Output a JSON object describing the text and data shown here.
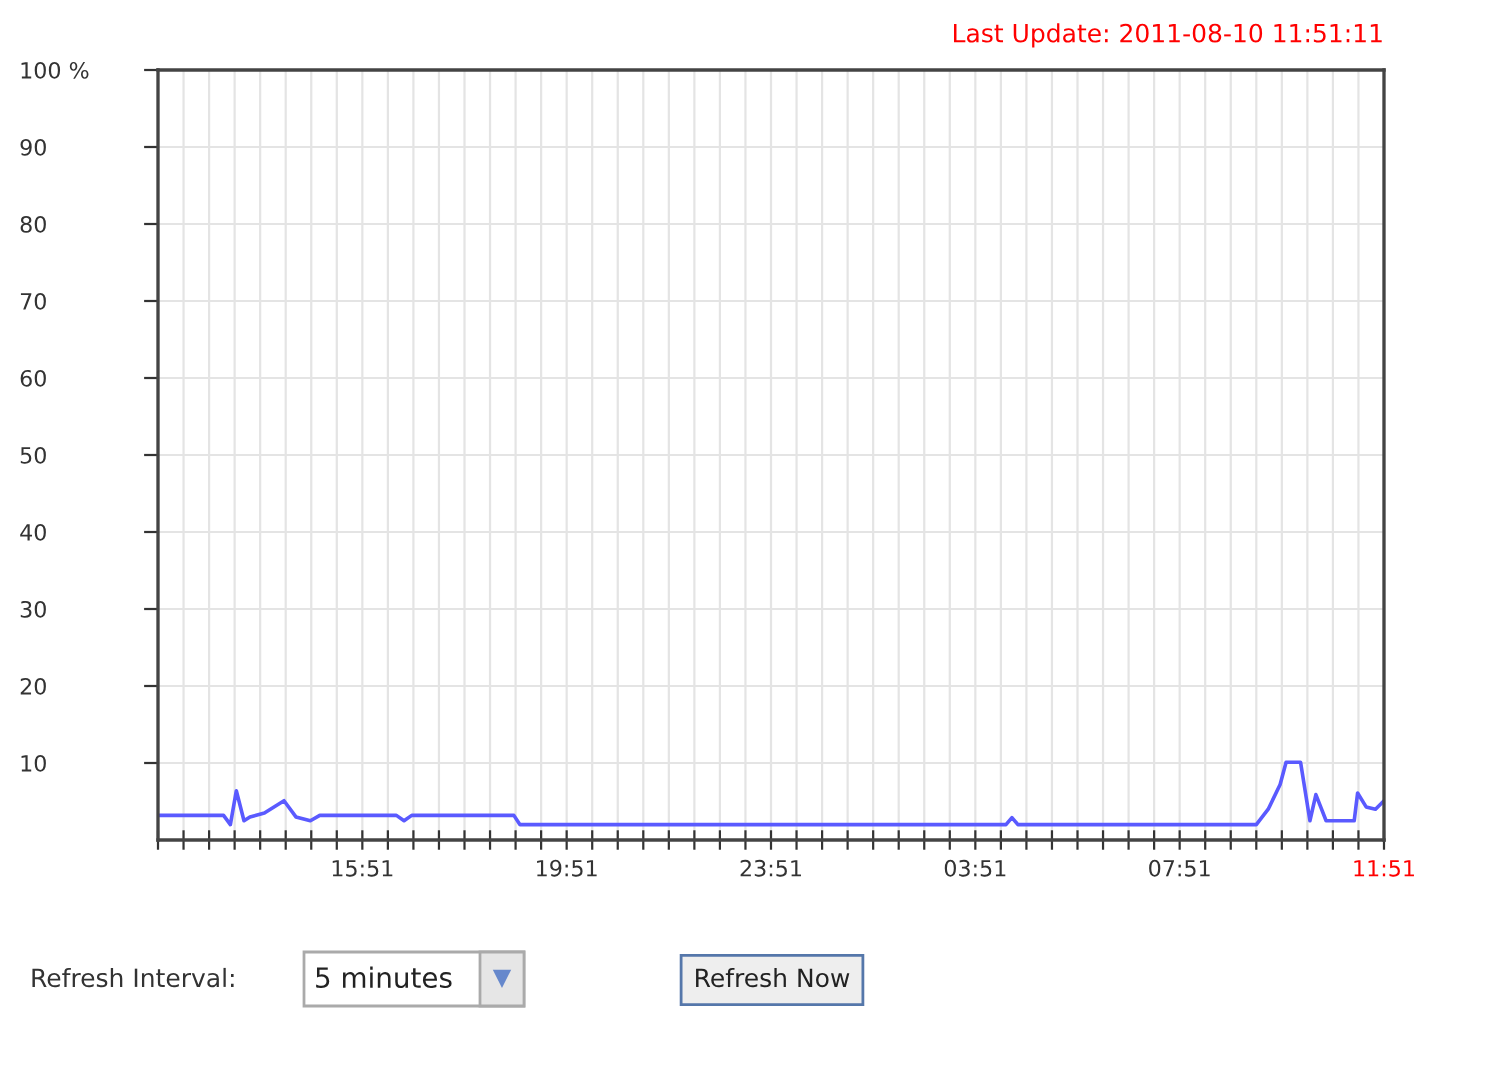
{
  "chart_data": {
    "type": "line",
    "title": "Last Update: 2011-08-10 11:51:11",
    "x": [
      "2011-08-09T11:51",
      "2011-08-09T13:08",
      "2011-08-09T13:16",
      "2011-08-09T13:23",
      "2011-08-09T13:32",
      "2011-08-09T13:39",
      "2011-08-09T13:56",
      "2011-08-09T14:19",
      "2011-08-09T14:33",
      "2011-08-09T14:50",
      "2011-08-09T15:01",
      "2011-08-09T16:31",
      "2011-08-09T16:40",
      "2011-08-09T16:49",
      "2011-08-09T18:49",
      "2011-08-09T18:56",
      "2011-08-10T04:27",
      "2011-08-10T04:34",
      "2011-08-10T04:41",
      "2011-08-10T09:21",
      "2011-08-10T09:35",
      "2011-08-10T09:49",
      "2011-08-10T09:56",
      "2011-08-10T10:13",
      "2011-08-10T10:24",
      "2011-08-10T10:31",
      "2011-08-10T10:43",
      "2011-08-10T11:16",
      "2011-08-10T11:20",
      "2011-08-10T11:30",
      "2011-08-10T11:41",
      "2011-08-10T11:51"
    ],
    "series": [
      {
        "color": "#5a5aff",
        "values": [
          3.2,
          3.2,
          2.0,
          6.4,
          2.5,
          3.0,
          3.5,
          5.1,
          3.0,
          2.5,
          3.2,
          3.2,
          2.5,
          3.2,
          3.2,
          2.0,
          2.0,
          2.9,
          2.0,
          2.0,
          4.0,
          7.2,
          10.1,
          10.1,
          2.5,
          5.9,
          2.5,
          2.5,
          6.1,
          4.3,
          4.0,
          5.1
        ]
      }
    ],
    "xlim": [
      "2011-08-09T11:51",
      "2011-08-10T11:51"
    ],
    "xticks": [
      {
        "value": "2011-08-09T11:51",
        "label": null
      },
      {
        "value": "2011-08-09T12:21",
        "label": null
      },
      {
        "value": "2011-08-09T12:51",
        "label": null
      },
      {
        "value": "2011-08-09T13:21",
        "label": null
      },
      {
        "value": "2011-08-09T13:51",
        "label": null
      },
      {
        "value": "2011-08-09T14:21",
        "label": null
      },
      {
        "value": "2011-08-09T14:51",
        "label": null
      },
      {
        "value": "2011-08-09T15:21",
        "label": null
      },
      {
        "value": "2011-08-09T15:51",
        "label": "15:51"
      },
      {
        "value": "2011-08-09T16:21",
        "label": null
      },
      {
        "value": "2011-08-09T16:51",
        "label": null
      },
      {
        "value": "2011-08-09T17:21",
        "label": null
      },
      {
        "value": "2011-08-09T17:51",
        "label": null
      },
      {
        "value": "2011-08-09T18:21",
        "label": null
      },
      {
        "value": "2011-08-09T18:51",
        "label": null
      },
      {
        "value": "2011-08-09T19:21",
        "label": null
      },
      {
        "value": "2011-08-09T19:51",
        "label": "19:51"
      },
      {
        "value": "2011-08-09T20:21",
        "label": null
      },
      {
        "value": "2011-08-09T20:51",
        "label": null
      },
      {
        "value": "2011-08-09T21:21",
        "label": null
      },
      {
        "value": "2011-08-09T21:51",
        "label": null
      },
      {
        "value": "2011-08-09T22:21",
        "label": null
      },
      {
        "value": "2011-08-09T22:51",
        "label": null
      },
      {
        "value": "2011-08-09T23:21",
        "label": null
      },
      {
        "value": "2011-08-09T23:51",
        "label": "23:51"
      },
      {
        "value": "2011-08-10T00:21",
        "label": null
      },
      {
        "value": "2011-08-10T00:51",
        "label": null
      },
      {
        "value": "2011-08-10T01:21",
        "label": null
      },
      {
        "value": "2011-08-10T01:51",
        "label": null
      },
      {
        "value": "2011-08-10T02:21",
        "label": null
      },
      {
        "value": "2011-08-10T02:51",
        "label": null
      },
      {
        "value": "2011-08-10T03:21",
        "label": null
      },
      {
        "value": "2011-08-10T03:51",
        "label": "03:51"
      },
      {
        "value": "2011-08-10T04:21",
        "label": null
      },
      {
        "value": "2011-08-10T04:51",
        "label": null
      },
      {
        "value": "2011-08-10T05:21",
        "label": null
      },
      {
        "value": "2011-08-10T05:51",
        "label": null
      },
      {
        "value": "2011-08-10T06:21",
        "label": null
      },
      {
        "value": "2011-08-10T06:51",
        "label": null
      },
      {
        "value": "2011-08-10T07:21",
        "label": null
      },
      {
        "value": "2011-08-10T07:51",
        "label": "07:51"
      },
      {
        "value": "2011-08-10T08:21",
        "label": null
      },
      {
        "value": "2011-08-10T08:51",
        "label": null
      },
      {
        "value": "2011-08-10T09:21",
        "label": null
      },
      {
        "value": "2011-08-10T09:51",
        "label": null
      },
      {
        "value": "2011-08-10T10:21",
        "label": null
      },
      {
        "value": "2011-08-10T10:51",
        "label": null
      },
      {
        "value": "2011-08-10T11:21",
        "label": null
      },
      {
        "value": "2011-08-10T11:51",
        "label": "11:51"
      }
    ],
    "ylim": [
      0,
      100
    ],
    "yticks": [
      10,
      20,
      30,
      40,
      50,
      60,
      70,
      80,
      90,
      {
        "value": 100,
        "label": "100 %"
      }
    ],
    "grid": true,
    "marker": "none",
    "line_style": "solid",
    "annotations": [
      "Refresh Interval:",
      "5 minutes",
      "Refresh Now"
    ]
  }
}
